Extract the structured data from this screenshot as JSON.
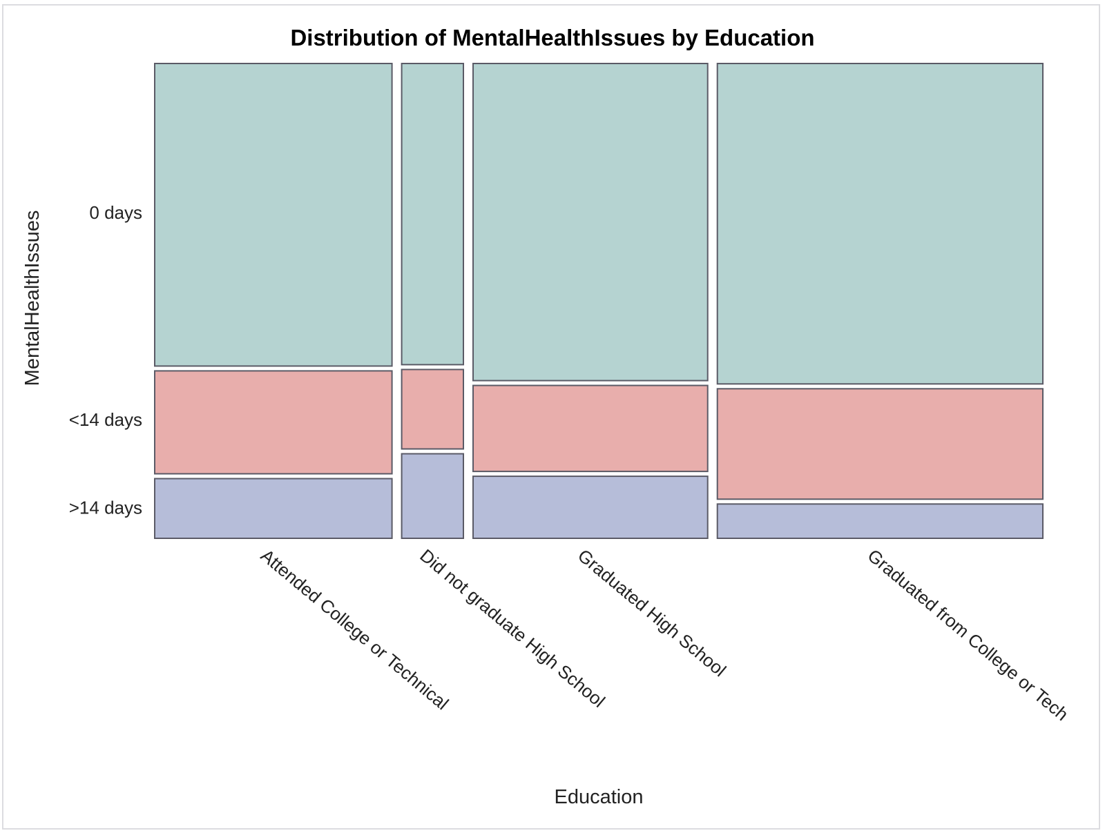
{
  "chart_data": {
    "type": "mosaic",
    "title": "Distribution of MentalHealthIssues by Education",
    "xlabel": "Education",
    "ylabel": "MentalHealthIssues",
    "categories": [
      "Attended College or Technical",
      "Did not graduate High School",
      "Graduated High School",
      "Graduated from College or Tech"
    ],
    "category_widths": [
      0.269,
      0.07,
      0.266,
      0.369
    ],
    "levels": [
      {
        "name": ">14 days",
        "color": "#b6bdd9"
      },
      {
        "name": "<14 days",
        "color": "#e8aeac"
      },
      {
        "name": "0 days",
        "color": "#b5d3d1"
      }
    ],
    "y_tick_labels": [
      {
        "label": "0 days",
        "value": 0.686
      },
      {
        "label": "<14 days",
        "value": 0.25
      },
      {
        "label": ">14 days",
        "value": 0.065
      }
    ],
    "proportions": [
      {
        "category": "Attended College or Technical",
        "values": [
          0.127,
          0.219,
          0.644
        ]
      },
      {
        "category": "Did not graduate High School",
        "values": [
          0.18,
          0.169,
          0.641
        ]
      },
      {
        "category": "Graduated High School",
        "values": [
          0.132,
          0.183,
          0.675
        ]
      },
      {
        "category": "Graduated from College or Tech",
        "values": [
          0.073,
          0.235,
          0.682
        ]
      }
    ]
  }
}
